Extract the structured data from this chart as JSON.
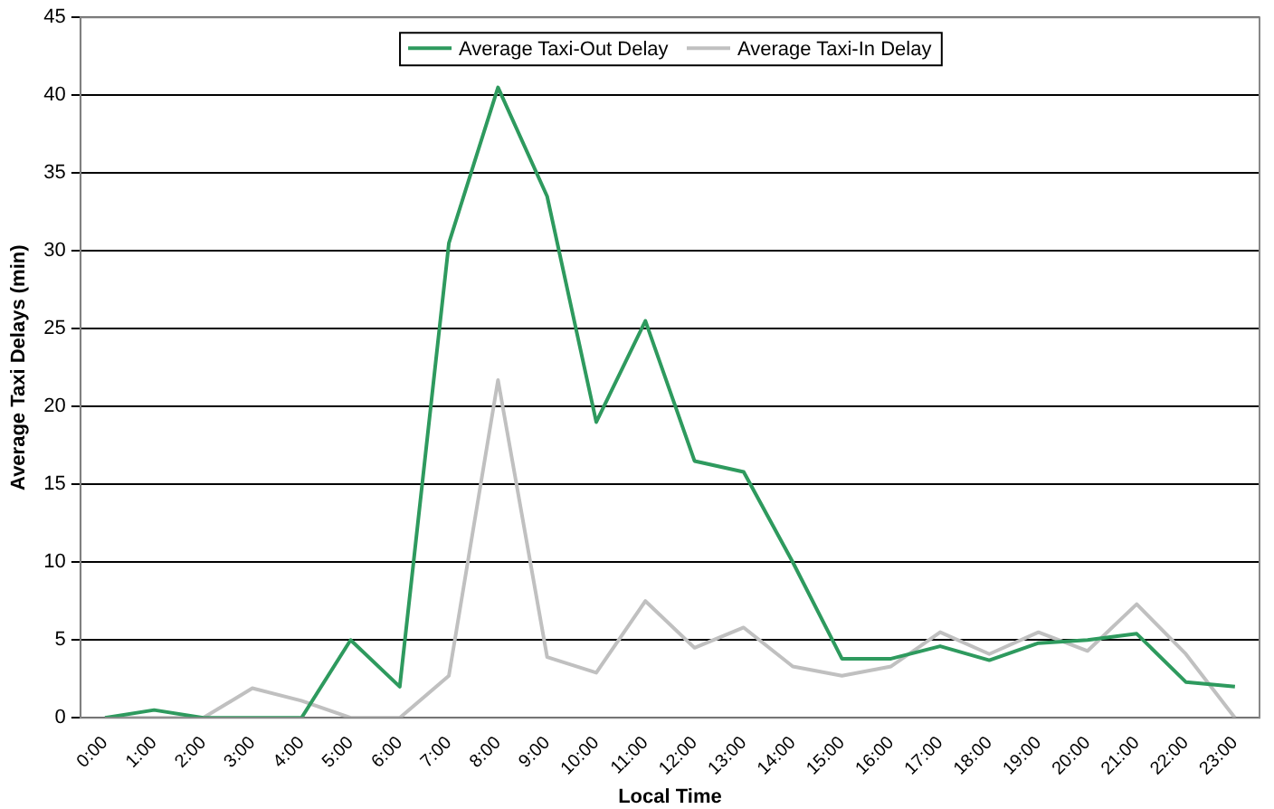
{
  "chart_data": {
    "type": "line",
    "xlabel": "Local Time",
    "ylabel": "Average Taxi Delays (min)",
    "categories": [
      "0:00",
      "1:00",
      "2:00",
      "3:00",
      "4:00",
      "5:00",
      "6:00",
      "7:00",
      "8:00",
      "9:00",
      "10:00",
      "11:00",
      "12:00",
      "13:00",
      "14:00",
      "15:00",
      "16:00",
      "17:00",
      "18:00",
      "19:00",
      "20:00",
      "21:00",
      "22:00",
      "23:00"
    ],
    "series": [
      {
        "name": "Average Taxi-Out Delay",
        "color": "#2e9a5e",
        "values": [
          0,
          0.5,
          0,
          0,
          0,
          5,
          2,
          30.5,
          40.5,
          33.5,
          19,
          25.5,
          16.5,
          15.8,
          10,
          3.8,
          3.8,
          4.6,
          3.7,
          4.8,
          5,
          5.4,
          2.3,
          2
        ]
      },
      {
        "name": "Average Taxi-In Delay",
        "color": "#c0c0c0",
        "values": [
          0,
          0,
          0,
          1.9,
          1.1,
          0,
          0,
          2.7,
          21.7,
          3.9,
          2.9,
          7.5,
          4.5,
          5.8,
          3.3,
          2.7,
          3.3,
          5.5,
          4.1,
          5.5,
          4.3,
          7.3,
          4.1,
          0
        ]
      }
    ],
    "ylim": [
      0,
      45
    ],
    "yticks": [
      0,
      5,
      10,
      15,
      20,
      25,
      30,
      35,
      40,
      45
    ],
    "grid": "y",
    "legend": "top",
    "marker": "none",
    "line_style": "solid"
  }
}
